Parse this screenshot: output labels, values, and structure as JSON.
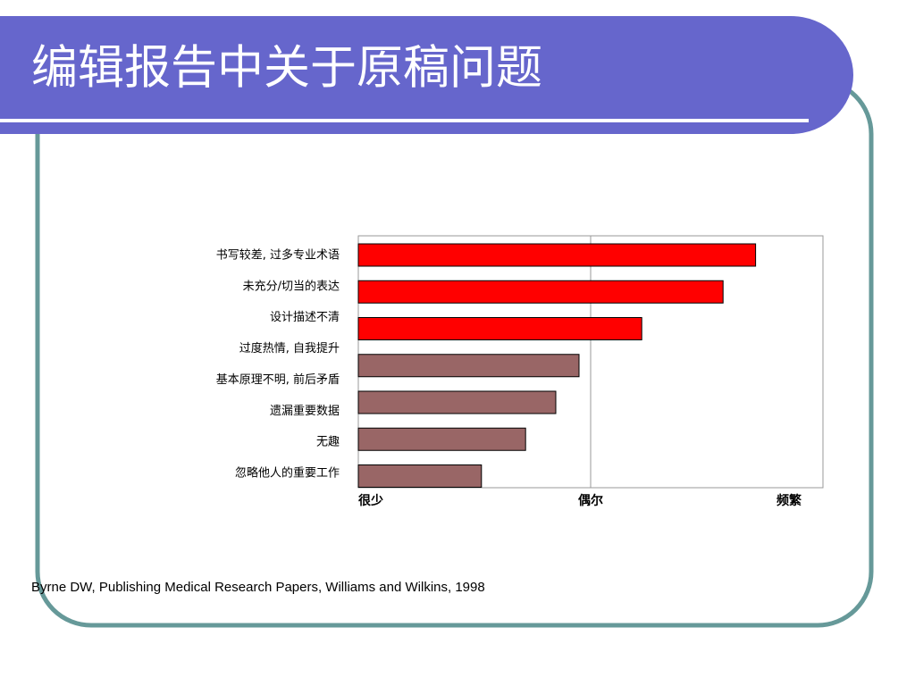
{
  "slide": {
    "title": "编辑报告中关于原稿问题",
    "source": "Byrne DW, Publishing Medical Research Papers, Williams and Wilkins, 1998"
  },
  "chart_data": {
    "type": "barh",
    "categories": [
      "书写较差, 过多专业术语",
      "未充分/切当的表达",
      "设计描述不清",
      "过度热情, 自我提升",
      "基本原理不明, 前后矛盾",
      "遗漏重要数据",
      "无趣",
      "忽略他人的重要工作"
    ],
    "values": [
      1.71,
      1.57,
      1.22,
      0.95,
      0.85,
      null,
      0.72,
      0.53
    ],
    "colors": [
      "#ff0000",
      "#ff0000",
      "#ff0000",
      "#996666",
      "#996666",
      "#996666",
      "#996666",
      "#996666"
    ],
    "xlim": [
      0,
      2
    ],
    "xticks": [
      {
        "value": 0,
        "label": "很少"
      },
      {
        "value": 1,
        "label": "偶尔"
      },
      {
        "value": 2,
        "label": "频繁"
      }
    ],
    "grid": true
  }
}
